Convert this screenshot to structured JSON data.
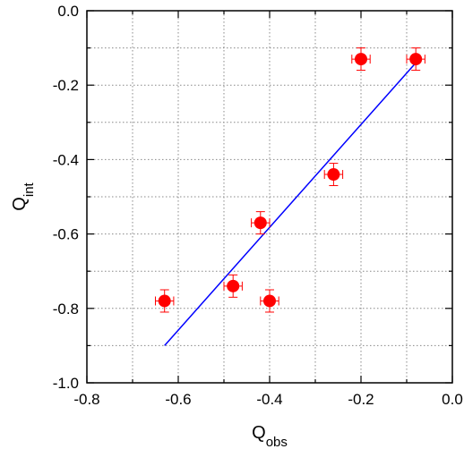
{
  "chart_data": {
    "type": "scatter",
    "title": "",
    "xlabel": "Q",
    "xlabel_sub": "obs",
    "ylabel": "Q",
    "ylabel_sub": "int",
    "xlim": [
      -0.8,
      0.0
    ],
    "ylim": [
      -1.0,
      0.0
    ],
    "x_ticks": [
      -0.8,
      -0.6,
      -0.4,
      -0.2,
      0.0
    ],
    "x_tick_labels": [
      "-0.8",
      "-0.6",
      "-0.4",
      "-0.2",
      "0.0"
    ],
    "y_ticks": [
      -1.0,
      -0.8,
      -0.6,
      -0.4,
      -0.2,
      0.0
    ],
    "y_tick_labels": [
      "-1.0",
      "-0.8",
      "-0.6",
      "-0.4",
      "-0.2",
      "0.0"
    ],
    "grid": true,
    "grid_style": "dotted",
    "legend": "none",
    "points": [
      {
        "x": -0.63,
        "y": -0.78,
        "xerr": 0.02,
        "yerr": 0.03
      },
      {
        "x": -0.48,
        "y": -0.74,
        "xerr": 0.02,
        "yerr": 0.03
      },
      {
        "x": -0.4,
        "y": -0.78,
        "xerr": 0.02,
        "yerr": 0.03
      },
      {
        "x": -0.42,
        "y": -0.57,
        "xerr": 0.02,
        "yerr": 0.03
      },
      {
        "x": -0.26,
        "y": -0.44,
        "xerr": 0.02,
        "yerr": 0.03
      },
      {
        "x": -0.2,
        "y": -0.13,
        "xerr": 0.02,
        "yerr": 0.03
      },
      {
        "x": -0.08,
        "y": -0.13,
        "xerr": 0.02,
        "yerr": 0.03
      }
    ],
    "fit_line": {
      "x": [
        -0.63,
        -0.08
      ],
      "y": [
        -0.9,
        -0.14
      ]
    },
    "colors": {
      "points": "#ff0000",
      "fit_line": "#0000ff",
      "grid": "#888888",
      "axes": "#000000"
    }
  }
}
